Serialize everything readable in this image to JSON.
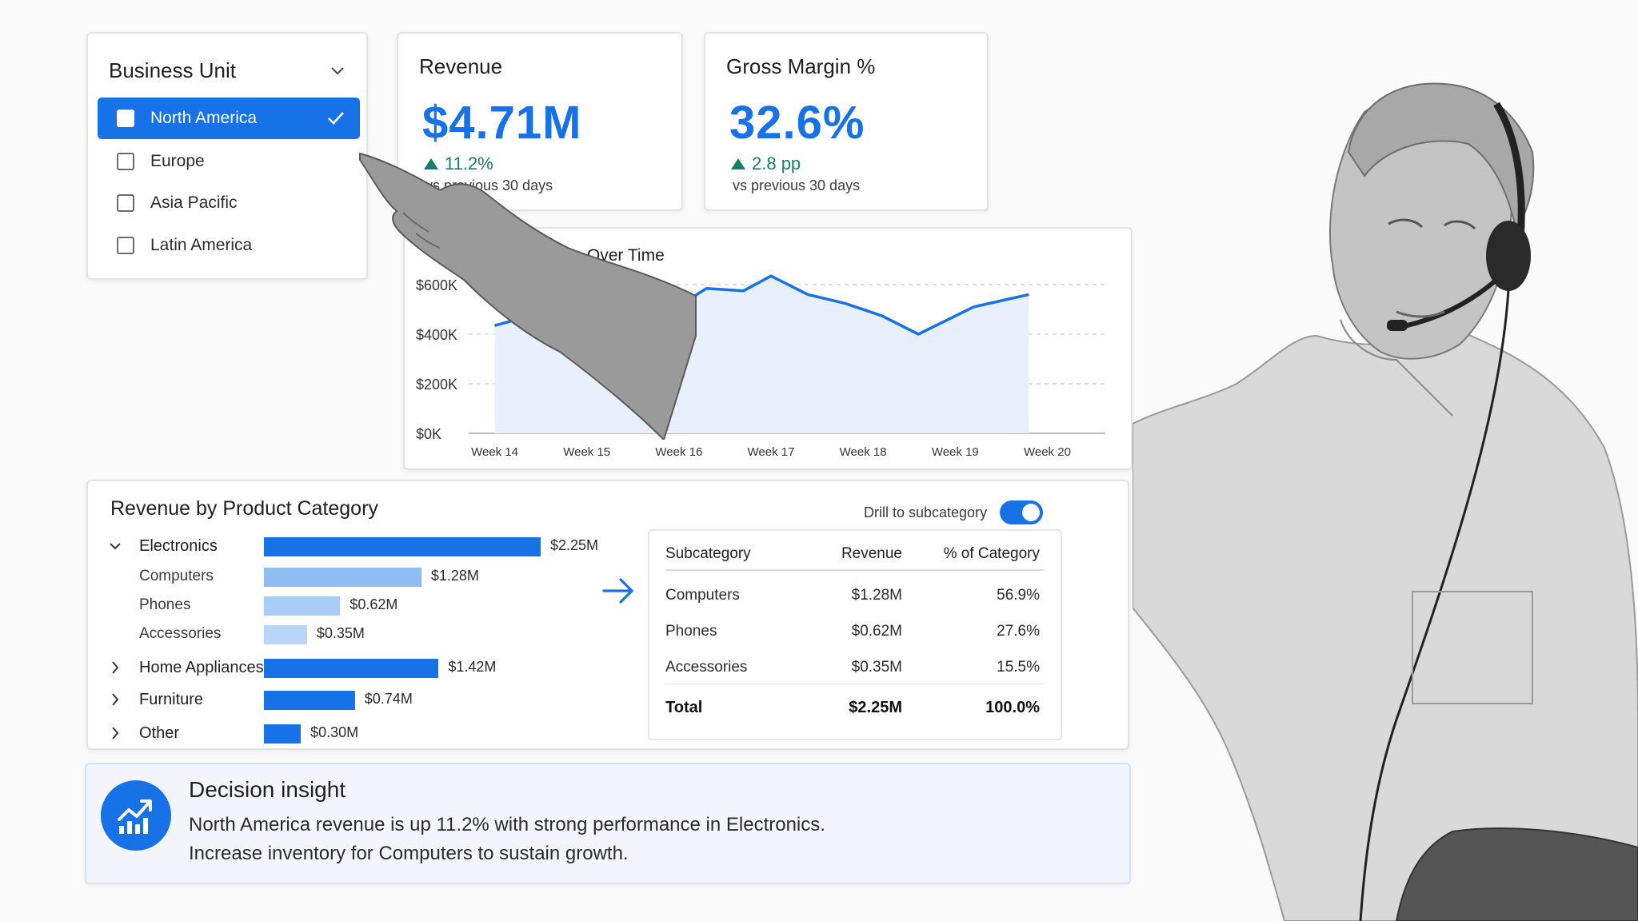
{
  "business_unit": {
    "title": "Business Unit",
    "options": [
      {
        "label": "North America",
        "selected": true
      },
      {
        "label": "Europe",
        "selected": false
      },
      {
        "label": "Asia Pacific",
        "selected": false
      },
      {
        "label": "Latin America",
        "selected": false
      }
    ]
  },
  "kpis": [
    {
      "title": "Revenue",
      "value": "$4.71M",
      "delta": "11.2%",
      "direction": "up",
      "comparison": "vs previous 30 days"
    },
    {
      "title": "Gross Margin %",
      "value": "32.6%",
      "delta": "2.8 pp",
      "direction": "up",
      "comparison": "vs previous 30 days"
    }
  ],
  "revenue_chart": {
    "title": "Revenue Over Time",
    "y_ticks": [
      "$600K",
      "$400K",
      "$200K",
      "$0K"
    ],
    "x_ticks": [
      "Week 14",
      "Week 15",
      "Week 16",
      "Week 17",
      "Week 18",
      "Week 19",
      "Week 20"
    ]
  },
  "category_panel": {
    "title": "Revenue by Product Category",
    "drill_label": "Drill to subcategory",
    "drill_enabled": true,
    "rows": [
      {
        "label": "Electronics",
        "value": 2.25,
        "value_label": "$2.25M",
        "level": 0,
        "expanded": true
      },
      {
        "label": "Computers",
        "value": 1.28,
        "value_label": "$1.28M",
        "level": 1
      },
      {
        "label": "Phones",
        "value": 0.62,
        "value_label": "$0.62M",
        "level": 1
      },
      {
        "label": "Accessories",
        "value": 0.35,
        "value_label": "$0.35M",
        "level": 1
      },
      {
        "label": "Home Appliances",
        "value": 1.42,
        "value_label": "$1.42M",
        "level": 0,
        "expanded": false
      },
      {
        "label": "Furniture",
        "value": 0.74,
        "value_label": "$0.74M",
        "level": 0,
        "expanded": false
      },
      {
        "label": "Other",
        "value": 0.3,
        "value_label": "$0.30M",
        "level": 0,
        "expanded": false
      }
    ]
  },
  "subcategory_table": {
    "headers": [
      "Subcategory",
      "Revenue",
      "% of Category"
    ],
    "rows": [
      [
        "Computers",
        "$1.28M",
        "56.9%"
      ],
      [
        "Phones",
        "$0.62M",
        "27.6%"
      ],
      [
        "Accessories",
        "$0.35M",
        "15.5%"
      ]
    ],
    "total": [
      "Total",
      "$2.25M",
      "100.0%"
    ]
  },
  "insight": {
    "title": "Decision insight",
    "line1": "North America revenue is up 11.2% with strong performance in Electronics.",
    "line2": "Increase inventory for Computers to sustain growth."
  },
  "colors": {
    "accent": "#1672e6",
    "positive": "#15806b",
    "bar_level0": "#1672e6",
    "bar_level1": [
      "#8fbdf2",
      "#a9cdf6",
      "#b9d6f8"
    ]
  },
  "chart_data": {
    "type": "area",
    "title": "Revenue Over Time",
    "x": [
      "Week 14",
      "Week 15",
      "Week 16",
      "Week 17",
      "Week 18",
      "Week 19",
      "Week 20"
    ],
    "x_numeric": [
      14,
      14.5,
      15,
      15.5,
      16,
      16.3,
      16.7,
      17.0,
      17.4,
      17.8,
      18.2,
      18.6,
      19.2,
      19.8
    ],
    "values_k": [
      435,
      485,
      520,
      545,
      515,
      585,
      575,
      635,
      560,
      525,
      475,
      400,
      510,
      560
    ],
    "ylim": [
      0,
      600
    ],
    "y_ticks": [
      0,
      200,
      400,
      600
    ],
    "grid": true,
    "legend": "none"
  }
}
